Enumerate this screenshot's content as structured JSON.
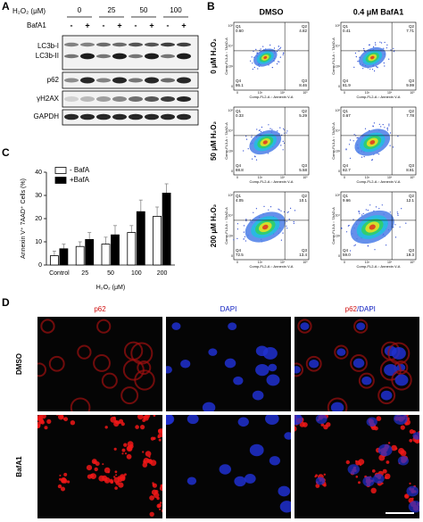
{
  "panel_labels": [
    "A",
    "B",
    "C",
    "D"
  ],
  "blot": {
    "treatment_label": "H₂O₂ (μM)",
    "doses": [
      "0",
      "25",
      "50",
      "100"
    ],
    "bafa1_label": "BafA1",
    "signs": [
      "-",
      "+",
      "-",
      "+",
      "-",
      "+",
      "-",
      "+"
    ],
    "band_labels": [
      "LC3b-I",
      "LC3b-II",
      "p62",
      "γH2AX",
      "GAPDH"
    ]
  },
  "flow": {
    "columns": [
      "DMSO",
      "0.4 μM BafA1"
    ],
    "rows": [
      "0 μM H₂O₂",
      "50 μM H₂O₂",
      "200 μM H₂O₂"
    ],
    "y_axis_label": "Comp-FL3-A :: 7AAD-A",
    "x_axis_label": "Comp-FL2-A :: Annexin V-A",
    "axis_ticks": [
      "0",
      "10³",
      "10⁴",
      "10⁵"
    ],
    "quadrant_names": [
      "Q1",
      "Q2",
      "Q3",
      "Q4"
    ],
    "quadrants": [
      [
        [
          "0.60",
          "4.82",
          "8.46",
          "86.1"
        ],
        [
          "0.41",
          "7.71",
          "9.99",
          "81.9"
        ]
      ],
      [
        [
          "0.33",
          "5.29",
          "5.58",
          "88.8"
        ],
        [
          "0.67",
          "7.78",
          "8.81",
          "82.7"
        ]
      ],
      [
        [
          "4.05",
          "10.1",
          "13.4",
          "72.5"
        ],
        [
          "9.66",
          "12.1",
          "19.3",
          "59.0"
        ]
      ]
    ]
  },
  "chart_data": {
    "type": "bar",
    "y_label": "Annexin V⁺ 7AAD⁺ Cells (%)",
    "x_label": "H₂O₂ (μM)",
    "categories": [
      "Control",
      "25",
      "50",
      "100",
      "200"
    ],
    "series": [
      {
        "name": "- BafA",
        "color": "#ffffff",
        "values": [
          4,
          8,
          9,
          14,
          21
        ],
        "errors": [
          2,
          2,
          3,
          3,
          4
        ]
      },
      {
        "name": "+BafA",
        "color": "#000000",
        "values": [
          7,
          11,
          13,
          23,
          31
        ],
        "errors": [
          2,
          3,
          4,
          5,
          4
        ]
      }
    ],
    "ylim": [
      0,
      40
    ],
    "yticks": [
      0,
      10,
      20,
      30,
      40
    ]
  },
  "microscopy": {
    "channels": [
      "p62",
      "DAPI"
    ],
    "merged": [
      "p62",
      "/DAPI"
    ],
    "rows": [
      "DMSO",
      "BafA1"
    ]
  }
}
